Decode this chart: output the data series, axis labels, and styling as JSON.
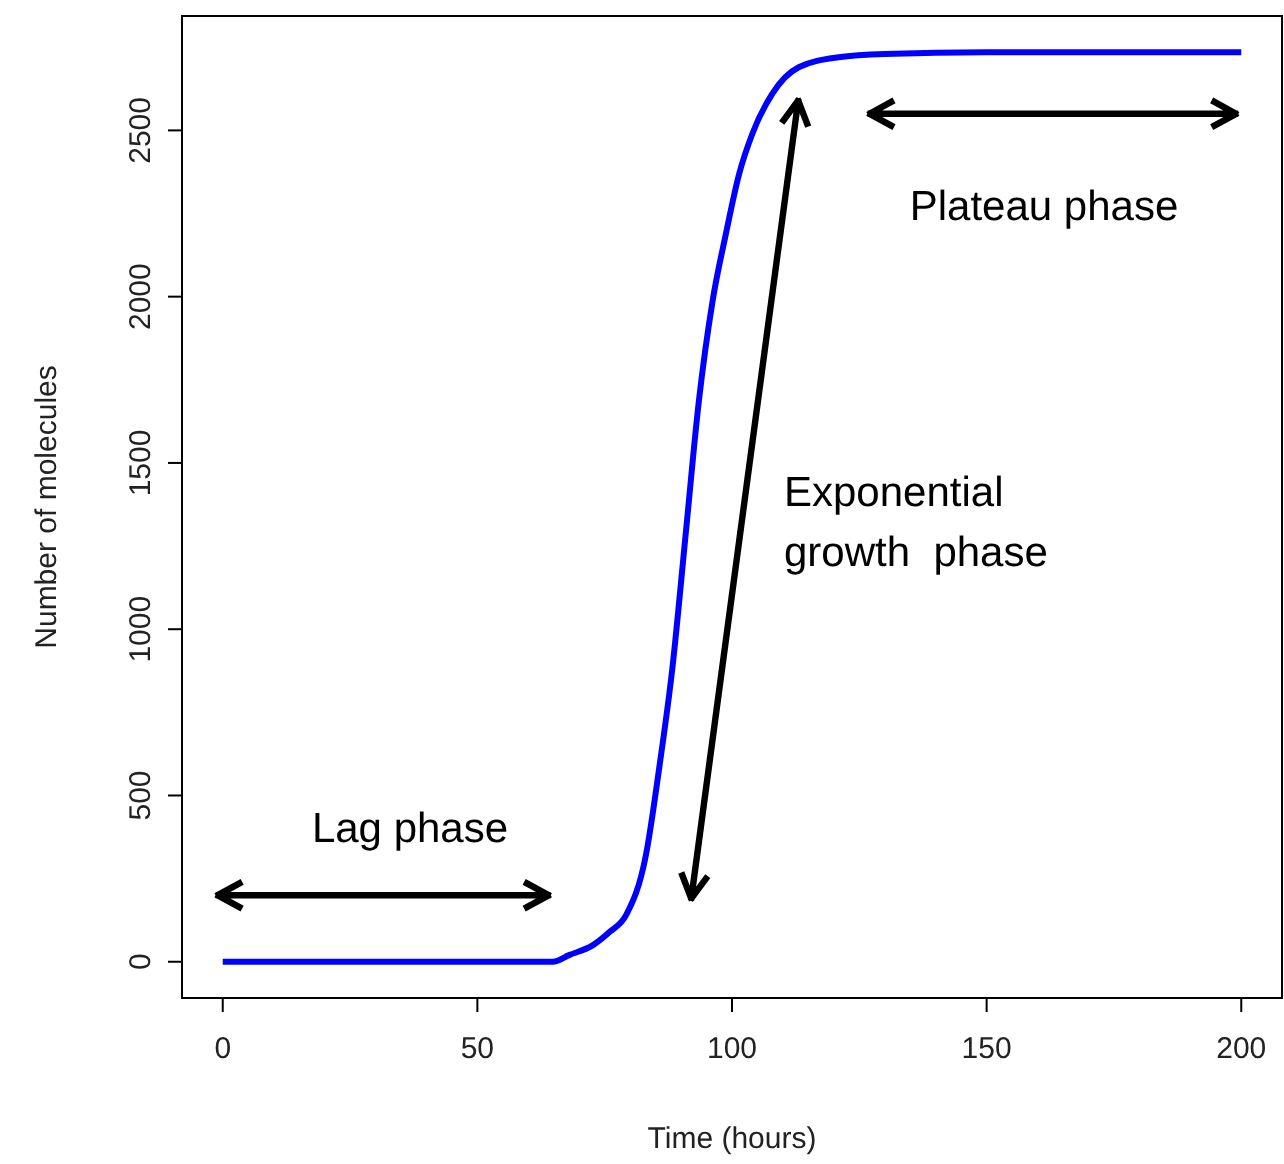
{
  "chart_data": {
    "type": "line",
    "xlabel": "Time (hours)",
    "ylabel": "Number of molecules",
    "xlim": [
      -8,
      208
    ],
    "ylim": [
      -109,
      2844
    ],
    "xticks": [
      0,
      50,
      100,
      150,
      200
    ],
    "yticks": [
      0,
      500,
      1000,
      1500,
      2000,
      2500
    ],
    "grid": false,
    "line_style": "solid",
    "marker": "none",
    "series": [
      {
        "color": "#0000ff",
        "x": [
          0,
          20,
          40,
          60,
          64.8,
          68,
          72.7,
          76,
          79.2,
          83.1,
          85.7,
          88.3,
          90.9,
          93.5,
          96.2,
          98.8,
          101.4,
          104,
          107.9,
          113.1,
          120.9,
          130,
          150,
          175,
          200
        ],
        "values": [
          0,
          0,
          0,
          0,
          0,
          20,
          50,
          90,
          140,
          321,
          582,
          884,
          1285,
          1687,
          1988,
          2189,
          2369,
          2490,
          2610,
          2690,
          2720,
          2730,
          2735,
          2735,
          2735
        ]
      }
    ],
    "annotations": [
      "Lag phase",
      "Exponential\ngrowth  phase",
      "Plateau phase"
    ]
  }
}
